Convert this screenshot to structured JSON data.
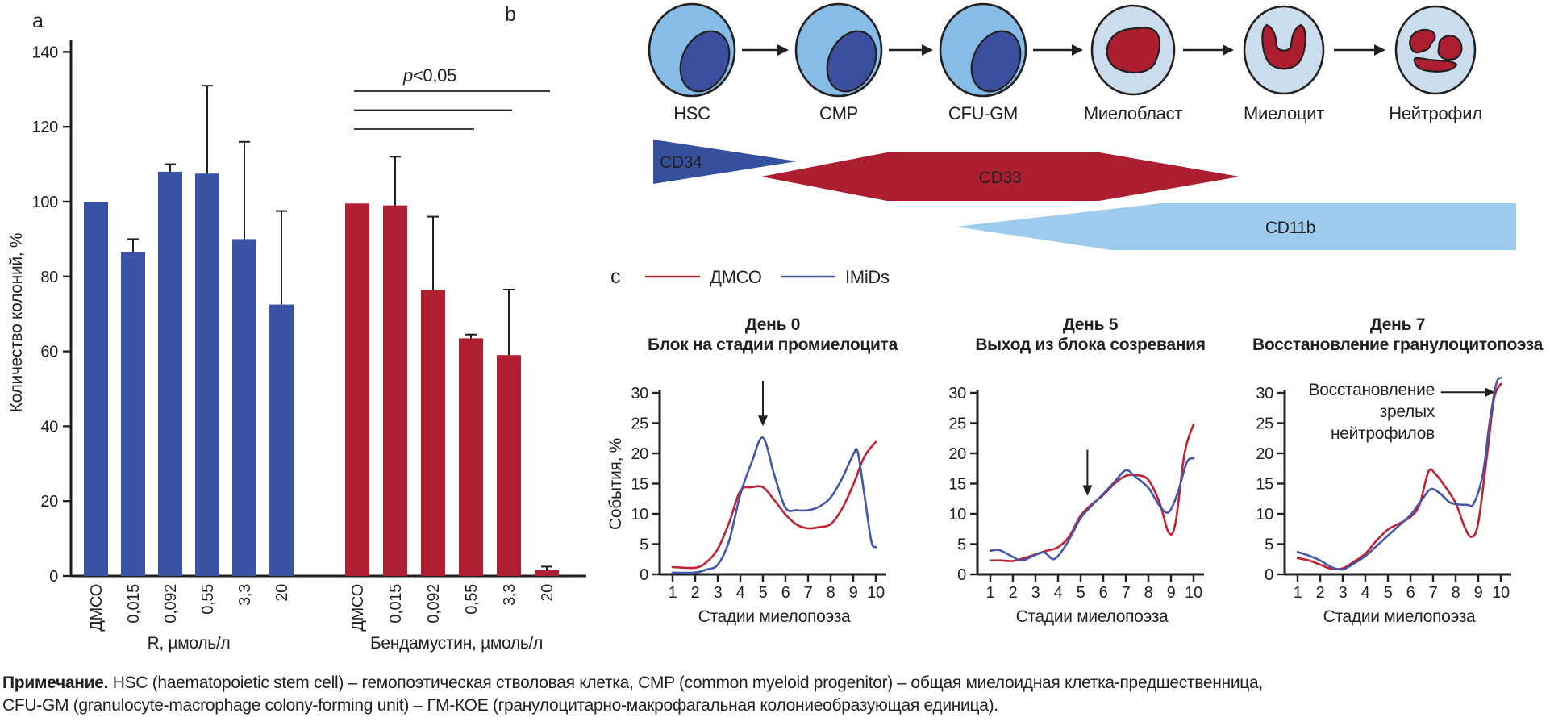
{
  "panels": {
    "a_label": "a",
    "b_label": "b",
    "c_label": "c"
  },
  "colors": {
    "bar_blue": "#3A53A5",
    "bar_red": "#B01E31",
    "line_red": "#C22033",
    "line_blue": "#4456A8",
    "cell_body_blue": "#86BCE5",
    "cell_nucleus_blue": "#3C4F9F",
    "cell_body_pale": "#CBDCEC",
    "cell_nucleus_red": "#AD1F30",
    "axis": "#231F20"
  },
  "legend": {
    "entries": [
      {
        "label": "ДМСО",
        "color": "#C22033"
      },
      {
        "label": "IMiDs",
        "color": "#4456A8"
      }
    ]
  },
  "diagram": {
    "stages": [
      {
        "label": "HSC"
      },
      {
        "label": "CMP"
      },
      {
        "label": "CFU-GM"
      },
      {
        "label": "Миелобласт"
      },
      {
        "label": "Миелоцит"
      },
      {
        "label": "Нейтрофил"
      }
    ],
    "markers": [
      {
        "label": "CD34",
        "color": "#35519E",
        "span": [
          "HSC",
          "CMP"
        ]
      },
      {
        "label": "CD33",
        "color": "#AD1F30",
        "span": [
          "CMP",
          "Миелоцит"
        ]
      },
      {
        "label": "CD11b",
        "color": "#9CCBEE",
        "span": [
          "CFU-GM",
          "Нейтрофил"
        ]
      }
    ]
  },
  "chart_data": [
    {
      "type": "bar",
      "ylabel": "Количество колоний, %",
      "ylim": [
        0,
        140
      ],
      "yticks": [
        0,
        20,
        40,
        60,
        80,
        100,
        120,
        140
      ],
      "groups": [
        {
          "name": "R, µмоль/л",
          "color": "#3A53A5",
          "categories": [
            "ДМСО",
            "0,015",
            "0,092",
            "0,55",
            "3,3",
            "20"
          ],
          "values": [
            100,
            86.5,
            108,
            107.5,
            90,
            72.5
          ],
          "errors_plus": [
            0,
            3.5,
            2,
            23.5,
            26,
            25
          ]
        },
        {
          "name": "Бендамустин, µмоль/л",
          "color": "#B01E31",
          "categories": [
            "ДМСО",
            "0,015",
            "0,092",
            "0,55",
            "3,3",
            "20"
          ],
          "values": [
            99.5,
            99,
            76.5,
            63.5,
            59,
            1.5
          ],
          "errors_plus": [
            0,
            13,
            19.5,
            1,
            17.5,
            1
          ]
        }
      ],
      "significance": {
        "p_label": "p",
        "value_label": "<0,05",
        "pairs": [
          [
            "ДМСО",
            "20"
          ],
          [
            "ДМСО",
            "3,3"
          ],
          [
            "ДМСО",
            "0,55"
          ]
        ]
      }
    },
    {
      "type": "line",
      "title": "День 0",
      "subtitle": "Блок на стадии промиелоцита",
      "xlabel": "Стадии миелопоэза",
      "ylabel": "События, %",
      "ylim": [
        0,
        30
      ],
      "yticks": [
        0,
        5,
        10,
        15,
        20,
        25,
        30
      ],
      "xticks": [
        1,
        2,
        3,
        4,
        5,
        6,
        7,
        8,
        9,
        10
      ],
      "annotation": {
        "arrow": "down",
        "stage": 5,
        "y_from": 32,
        "y_to": 24.5
      },
      "series": [
        {
          "name": "ДМСО",
          "color": "#C22033",
          "points": [
            [
              1,
              1.2
            ],
            [
              2,
              1.1
            ],
            [
              2.5,
              2
            ],
            [
              3,
              4.2
            ],
            [
              3.5,
              8.5
            ],
            [
              4,
              13.8
            ],
            [
              4.5,
              14.4
            ],
            [
              5,
              14.4
            ],
            [
              5.5,
              12.3
            ],
            [
              6,
              9.9
            ],
            [
              6.5,
              8.2
            ],
            [
              7,
              7.6
            ],
            [
              7.5,
              7.8
            ],
            [
              8,
              8.3
            ],
            [
              8.5,
              10.8
            ],
            [
              9,
              14.8
            ],
            [
              9.5,
              19.5
            ],
            [
              10,
              21.9
            ]
          ]
        },
        {
          "name": "IMiDs",
          "color": "#4456A8",
          "points": [
            [
              1,
              0.3
            ],
            [
              2,
              0.3
            ],
            [
              2.5,
              0.8
            ],
            [
              3,
              1.6
            ],
            [
              3.5,
              5.5
            ],
            [
              4,
              13.2
            ],
            [
              4.5,
              18.5
            ],
            [
              5,
              22.6
            ],
            [
              5.5,
              16.5
            ],
            [
              6,
              11
            ],
            [
              6.5,
              10.6
            ],
            [
              7,
              10.6
            ],
            [
              7.5,
              11.2
            ],
            [
              8,
              12.7
            ],
            [
              8.5,
              15.8
            ],
            [
              9,
              19.8
            ],
            [
              9.2,
              20.2
            ],
            [
              9.5,
              13
            ],
            [
              9.8,
              5.5
            ],
            [
              10,
              4.5
            ]
          ]
        }
      ]
    },
    {
      "type": "line",
      "title": "День 5",
      "subtitle": "Выход из блока созревания",
      "xlabel": "Стадии миелопоэза",
      "ylim": [
        0,
        30
      ],
      "yticks": [
        0,
        5,
        10,
        15,
        20,
        25,
        30
      ],
      "xticks": [
        1,
        2,
        3,
        4,
        5,
        6,
        7,
        8,
        9,
        10
      ],
      "annotation": {
        "arrow": "down",
        "stage": 5.3,
        "y_from": 20.6,
        "y_to": 13
      },
      "series": [
        {
          "name": "ДМСО",
          "color": "#C22033",
          "points": [
            [
              1,
              2.3
            ],
            [
              1.5,
              2.3
            ],
            [
              2,
              2.2
            ],
            [
              2.5,
              2.7
            ],
            [
              3,
              3.3
            ],
            [
              3.5,
              3.9
            ],
            [
              4,
              4.5
            ],
            [
              4.5,
              6.3
            ],
            [
              5,
              9.7
            ],
            [
              5.5,
              11.6
            ],
            [
              6,
              13.1
            ],
            [
              6.5,
              15
            ],
            [
              7,
              16.3
            ],
            [
              7.5,
              16.4
            ],
            [
              8,
              15.6
            ],
            [
              8.5,
              11.8
            ],
            [
              8.9,
              6.9
            ],
            [
              9.2,
              8.5
            ],
            [
              9.6,
              20
            ],
            [
              10,
              24.8
            ]
          ]
        },
        {
          "name": "IMiDs",
          "color": "#4456A8",
          "points": [
            [
              1,
              3.9
            ],
            [
              1.4,
              4
            ],
            [
              2,
              2.9
            ],
            [
              2.4,
              2.3
            ],
            [
              3,
              3.2
            ],
            [
              3.4,
              3.6
            ],
            [
              3.8,
              2.5
            ],
            [
              4.2,
              4
            ],
            [
              4.6,
              6.5
            ],
            [
              5,
              9.3
            ],
            [
              5.5,
              11.4
            ],
            [
              6,
              13.3
            ],
            [
              6.5,
              15.3
            ],
            [
              7,
              17.2
            ],
            [
              7.4,
              16.2
            ],
            [
              8,
              14.3
            ],
            [
              8.5,
              11.3
            ],
            [
              8.9,
              10.3
            ],
            [
              9.3,
              13.5
            ],
            [
              9.7,
              18.5
            ],
            [
              10,
              19.2
            ]
          ]
        }
      ]
    },
    {
      "type": "line",
      "title": "День 7",
      "subtitle": "Восстановление гранулоцитопоэза",
      "xlabel": "Стадии миелопоэза",
      "ylim": [
        0,
        30
      ],
      "yticks": [
        0,
        5,
        10,
        15,
        20,
        25,
        30
      ],
      "xticks": [
        1,
        2,
        3,
        4,
        5,
        6,
        7,
        8,
        9,
        10
      ],
      "annotation": {
        "arrow": "right",
        "stage_from": 7.35,
        "stage_to": 9.75,
        "y": 30.1,
        "lines": [
          "Восстановление",
          "зрелых",
          "нейтрофилов"
        ]
      },
      "series": [
        {
          "name": "ДМСО",
          "color": "#C22033",
          "points": [
            [
              1,
              2.7
            ],
            [
              1.5,
              2.3
            ],
            [
              2,
              1.6
            ],
            [
              2.5,
              0.9
            ],
            [
              3,
              1
            ],
            [
              3.5,
              2.1
            ],
            [
              4,
              3.4
            ],
            [
              4.5,
              5.6
            ],
            [
              5,
              7.4
            ],
            [
              5.5,
              8.4
            ],
            [
              6,
              9.5
            ],
            [
              6.4,
              11.5
            ],
            [
              6.8,
              17
            ],
            [
              7.1,
              16.6
            ],
            [
              7.5,
              14.7
            ],
            [
              8,
              11.8
            ],
            [
              8.4,
              7.8
            ],
            [
              8.7,
              6.2
            ],
            [
              9,
              8.5
            ],
            [
              9.4,
              20
            ],
            [
              9.7,
              29
            ],
            [
              10,
              31.5
            ]
          ]
        },
        {
          "name": "IMiDs",
          "color": "#4456A8",
          "points": [
            [
              1,
              3.7
            ],
            [
              1.5,
              3.1
            ],
            [
              2,
              2.3
            ],
            [
              2.5,
              1.2
            ],
            [
              3,
              0.8
            ],
            [
              3.5,
              1.8
            ],
            [
              4,
              3
            ],
            [
              4.5,
              4.7
            ],
            [
              5,
              6.4
            ],
            [
              5.5,
              8.1
            ],
            [
              6,
              9.8
            ],
            [
              6.5,
              12.3
            ],
            [
              6.9,
              14.1
            ],
            [
              7.3,
              13.4
            ],
            [
              7.7,
              12
            ],
            [
              8,
              11.6
            ],
            [
              8.5,
              11.5
            ],
            [
              8.8,
              11.7
            ],
            [
              9.2,
              16.5
            ],
            [
              9.5,
              25
            ],
            [
              9.8,
              31.5
            ],
            [
              10,
              32.5
            ]
          ]
        }
      ]
    }
  ],
  "note": {
    "label": "Примечание.",
    "line1": " HSC (haematopoietic stem cell) – гемопоэтическая стволовая клетка, CMP (common myeloid progenitor) – общая миелоидная клетка-предшественница,",
    "line2": "CFU-GM (granulocyte-macrophage colony-forming unit) – ГМ-КОЕ (гранулоцитарно-макрофагальная колониеобразующая единица)."
  }
}
